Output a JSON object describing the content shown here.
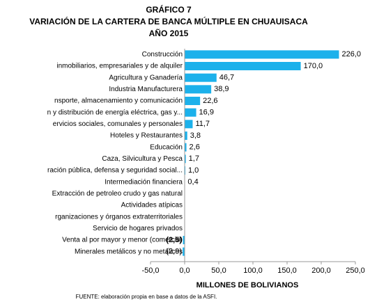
{
  "chart_data": {
    "type": "barh",
    "title": [
      "GRÁFICO 7",
      "VARIACIÓN DE LA CARTERA DE BANCA MÚLTIPLE EN CHUAUISACA",
      "AÑO 2015"
    ],
    "categories": [
      "Construcción",
      "inmobiliarios, empresariales y de alquiler",
      "Agricultura y Ganadería",
      "Industria Manufacturera",
      "nsporte, almacenamiento y comunicación",
      "n y distribución de energía eléctrica, gas y...",
      "ervicios sociales, comunales y personales",
      "Hoteles y Restaurantes",
      "Educación",
      "Caza, Silvicultura y Pesca",
      "ración pública, defensa y seguridad social...",
      "Intermediación financiera",
      "Extracción de petroleo crudo y gas natural",
      "Actividades atípicas",
      "rganizaciones y órganos extraterritoriales",
      "Servicio de hogares privados",
      "Venta al por mayor y menor (comercio)",
      "Minerales metálicos y no metálicos"
    ],
    "values": [
      226.0,
      170.0,
      46.7,
      38.9,
      22.6,
      16.9,
      11.7,
      3.8,
      2.6,
      1.7,
      1.0,
      0.4,
      0,
      0,
      0,
      0,
      -2.5,
      -2.9
    ],
    "value_labels": [
      "226,0",
      "170,0",
      "46,7",
      "38,9",
      "22,6",
      "16,9",
      "11,7",
      "3,8",
      "2,6",
      "1,7",
      "1,0",
      "0,4",
      null,
      null,
      null,
      null,
      "(2,5)",
      "(2,9)"
    ],
    "value_label_colors": [
      "#000000",
      "#000000",
      "#000000",
      "#000000",
      "#000000",
      "#000000",
      "#000000",
      "#000000",
      "#000000",
      "#000000",
      "#000000",
      "#000000",
      "#000000",
      "#000000",
      "#000000",
      "#000000",
      "#ff0000",
      "#000000"
    ],
    "color": "#1cb1eb",
    "xlim": [
      -50,
      250
    ],
    "xticks": [
      {
        "value": -50,
        "label": "-50,0"
      },
      {
        "value": 0,
        "label": "0,0"
      },
      {
        "value": 50,
        "label": "50,0"
      },
      {
        "value": 100,
        "label": "100,0"
      },
      {
        "value": 150,
        "label": "150,0"
      },
      {
        "value": 200,
        "label": "200,0"
      },
      {
        "value": 250,
        "label": "250,0"
      }
    ],
    "xlabel": "MILLONES DE BOLIVIANOS",
    "source": "FUENTE: elaboración propia en base a datos de la ASFI.",
    "grid": false
  }
}
